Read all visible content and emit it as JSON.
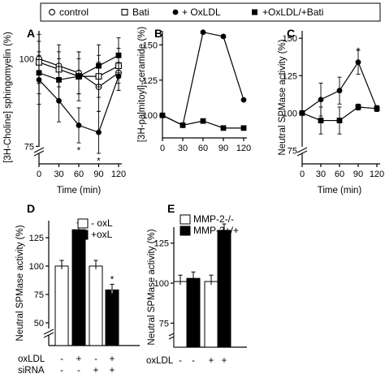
{
  "legend": {
    "items": [
      {
        "label": "control",
        "marker": "open-circle"
      },
      {
        "label": "Bati",
        "marker": "open-square"
      },
      {
        "label": "+ OxLDL",
        "marker": "filled-circle"
      },
      {
        "label": "+OxLDL/+Bati",
        "marker": "filled-square"
      }
    ]
  },
  "chart_data": [
    {
      "panel": "A",
      "type": "line",
      "xlabel": "Time (min)",
      "ylabel": "[3H-Choline] sphingomyelin (%)",
      "x": [
        0,
        30,
        60,
        90,
        120
      ],
      "xticks": [
        "0",
        "30",
        "60",
        "90",
        "120"
      ],
      "ylim": [
        70,
        108
      ],
      "yticks": [
        75,
        100
      ],
      "axis_break": true,
      "series": [
        {
          "name": "control",
          "marker": "open-circle",
          "values": [
            100,
            98,
            96,
            92,
            96
          ],
          "err": [
            7,
            6,
            6,
            7,
            5
          ]
        },
        {
          "name": "Bati",
          "marker": "open-square",
          "values": [
            99,
            97,
            95,
            95,
            98
          ],
          "err": [
            6,
            5,
            5,
            6,
            5
          ]
        },
        {
          "name": "+ OxLDL",
          "marker": "filled-circle",
          "values": [
            94,
            88,
            81,
            79,
            95
          ],
          "err": [
            7,
            6,
            5,
            6,
            4
          ]
        },
        {
          "name": "+OxLDL/+Bati",
          "marker": "filled-square",
          "values": [
            96,
            94,
            95,
            98,
            101
          ],
          "err": [
            6,
            6,
            7,
            6,
            5
          ]
        }
      ],
      "annotations": [
        {
          "text": "*",
          "x": 60,
          "y": 74
        },
        {
          "text": "*",
          "x": 90,
          "y": 71
        }
      ]
    },
    {
      "panel": "B",
      "type": "line",
      "xlabel": "",
      "ylabel": "[3H-palmitoyl]-ceramide (%)",
      "x": [
        0,
        30,
        60,
        90,
        120
      ],
      "xticks": [
        "0",
        "30",
        "60",
        "90",
        "120"
      ],
      "ylim": [
        84,
        160
      ],
      "yticks": [
        100,
        125,
        150
      ],
      "axis_break": false,
      "series": [
        {
          "name": "+ OxLDL",
          "marker": "filled-circle",
          "values": [
            100,
            93,
            159,
            156,
            111
          ]
        },
        {
          "name": "+OxLDL/+Bati",
          "marker": "filled-square",
          "values": [
            100,
            93,
            96,
            91,
            91
          ]
        }
      ]
    },
    {
      "panel": "C",
      "type": "line",
      "xlabel": "Time (min)",
      "ylabel": "Neutral SPMase activity (%)",
      "x": [
        0,
        30,
        60,
        90,
        120
      ],
      "xticks": [
        "0",
        "30",
        "60",
        "90",
        "120"
      ],
      "ylim": [
        66,
        155
      ],
      "yticks": [
        75,
        100,
        125,
        150
      ],
      "axis_break": true,
      "series": [
        {
          "name": "+ OxLDL",
          "marker": "filled-circle",
          "values": [
            100,
            109,
            115,
            134,
            103
          ],
          "err": [
            0,
            11,
            9,
            8,
            2
          ]
        },
        {
          "name": "+OxLDL/+Bati",
          "marker": "filled-square",
          "values": [
            100,
            95,
            95,
            104,
            103
          ],
          "err": [
            0,
            9,
            9,
            2,
            1
          ]
        }
      ],
      "annotations": [
        {
          "text": "*",
          "x": 90,
          "y": 142
        }
      ]
    },
    {
      "panel": "D",
      "type": "bar",
      "ylabel": "Neutral SPMase activity (%)",
      "ylim": [
        30,
        140
      ],
      "yticks": [
        50,
        75,
        100,
        125
      ],
      "axis_break": true,
      "legend": [
        {
          "label": "- oxL",
          "fill": "open"
        },
        {
          "label": "+oxL",
          "fill": "filled"
        }
      ],
      "conditions": [
        {
          "name": "oxLDL",
          "values": [
            "-",
            "+",
            "-",
            "+"
          ]
        },
        {
          "name": "siRNA",
          "values": [
            "-",
            "-",
            "+",
            "+"
          ]
        }
      ],
      "bars": [
        {
          "value": 100,
          "err": 5,
          "fill": "open"
        },
        {
          "value": 132,
          "err": 6,
          "fill": "filled"
        },
        {
          "value": 100,
          "err": 5,
          "fill": "open"
        },
        {
          "value": 79,
          "err": 5,
          "fill": "filled"
        }
      ],
      "annotations": [
        {
          "text": "*",
          "bar": 3
        }
      ]
    },
    {
      "panel": "E",
      "type": "bar",
      "ylabel": "Neutral SPMase activity (%)",
      "ylim": [
        60,
        135
      ],
      "yticks": [
        75,
        100,
        125
      ],
      "axis_break": true,
      "legend": [
        {
          "label": "MMP-2-/-",
          "fill": "open"
        },
        {
          "label": "MMP-2+/+",
          "fill": "filled"
        }
      ],
      "conditions": [
        {
          "name": "oxLDL",
          "values": [
            "-",
            "-",
            "+",
            "+"
          ]
        }
      ],
      "bars": [
        {
          "value": 101,
          "err": 4,
          "fill": "open"
        },
        {
          "value": 103,
          "err": 4,
          "fill": "filled"
        },
        {
          "value": 101,
          "err": 4,
          "fill": "open"
        },
        {
          "value": 133,
          "err": 4,
          "fill": "filled"
        }
      ]
    }
  ]
}
